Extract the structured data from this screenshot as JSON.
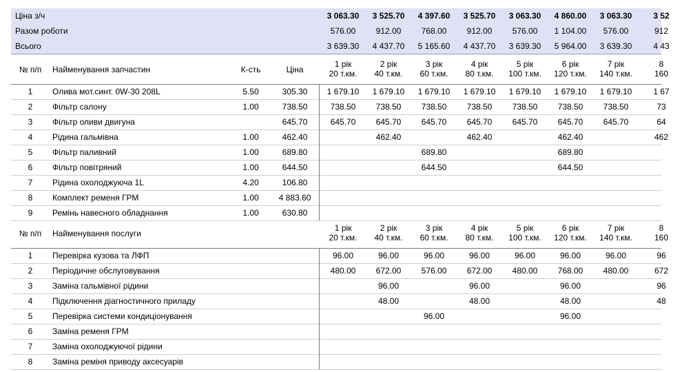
{
  "summary": {
    "rows": [
      {
        "label": "Ціна з/ч",
        "bold": true,
        "values": [
          "3 063.30",
          "3 525.70",
          "4 397.60",
          "3 525.70",
          "3 063.30",
          "4 860.00",
          "3 063.30",
          "3 52"
        ]
      },
      {
        "label": "Разом роботи",
        "bold": false,
        "values": [
          "576.00",
          "912.00",
          "768.00",
          "912.00",
          "576.00",
          "1 104.00",
          "576.00",
          "912"
        ]
      },
      {
        "label": "Всього",
        "bold": false,
        "values": [
          "3 639.30",
          "4 437.70",
          "5 165.60",
          "4 437.70",
          "3 639.30",
          "5 964.00",
          "3 639.30",
          "4 43"
        ]
      }
    ]
  },
  "periods": [
    {
      "year": "1 рік",
      "km": "20 т.км."
    },
    {
      "year": "2 рік",
      "km": "40 т.км."
    },
    {
      "year": "3 рік",
      "km": "60 т.км."
    },
    {
      "year": "4 рік",
      "km": "80 т.км."
    },
    {
      "year": "5 рік",
      "km": "100 т.км."
    },
    {
      "year": "6 рік",
      "km": "120 т.км."
    },
    {
      "year": "7 рік",
      "km": "140 т.км."
    },
    {
      "year": "8",
      "km": "160"
    }
  ],
  "parts": {
    "col_no": "№ п/п",
    "col_name": "Найменування запчастин",
    "col_qty": "К-сть",
    "col_price": "Ціна",
    "rows": [
      {
        "no": "1",
        "name": "Олива мот.синт. 0W-30 208L",
        "qty": "5.50",
        "price": "305.30",
        "v": [
          "1 679.10",
          "1 679.10",
          "1 679.10",
          "1 679.10",
          "1 679.10",
          "1 679.10",
          "1 679.10",
          "1 67"
        ]
      },
      {
        "no": "2",
        "name": "Фільтр салону",
        "qty": "1.00",
        "price": "738.50",
        "v": [
          "738.50",
          "738.50",
          "738.50",
          "738.50",
          "738.50",
          "738.50",
          "738.50",
          "73"
        ]
      },
      {
        "no": "3",
        "name": "Фільтр оливи двигуна",
        "qty": "",
        "price": "645.70",
        "v": [
          "645.70",
          "645.70",
          "645.70",
          "645.70",
          "645.70",
          "645.70",
          "645.70",
          "64"
        ]
      },
      {
        "no": "4",
        "name": "Рідина гальмівна",
        "qty": "1.00",
        "price": "462.40",
        "v": [
          "",
          "462.40",
          "",
          "462.40",
          "",
          "462.40",
          "",
          "462"
        ]
      },
      {
        "no": "5",
        "name": "Фільтр паливний",
        "qty": "1.00",
        "price": "689.80",
        "v": [
          "",
          "",
          "689.80",
          "",
          "",
          "689.80",
          "",
          ""
        ]
      },
      {
        "no": "6",
        "name": "Фільтр повітряний",
        "qty": "1.00",
        "price": "644.50",
        "v": [
          "",
          "",
          "644.50",
          "",
          "",
          "644.50",
          "",
          ""
        ]
      },
      {
        "no": "7",
        "name": "Рідина охолоджуюча 1L",
        "qty": "4.20",
        "price": "106.80",
        "v": [
          "",
          "",
          "",
          "",
          "",
          "",
          "",
          ""
        ]
      },
      {
        "no": "8",
        "name": "Комплект ременя ГРМ",
        "qty": "1.00",
        "price": "4 883.60",
        "v": [
          "",
          "",
          "",
          "",
          "",
          "",
          "",
          ""
        ]
      },
      {
        "no": "9",
        "name": "Ремінь навесного обладнання",
        "qty": "1.00",
        "price": "630.80",
        "v": [
          "",
          "",
          "",
          "",
          "",
          "",
          "",
          ""
        ]
      }
    ]
  },
  "services": {
    "col_no": "№ п/п",
    "col_name": "Найменування послуги",
    "rows": [
      {
        "no": "1",
        "name": "Перевірка кузова та ЛФП",
        "v": [
          "96.00",
          "96.00",
          "96.00",
          "96.00",
          "96.00",
          "96.00",
          "96.00",
          "96"
        ]
      },
      {
        "no": "2",
        "name": "Періодичне обслуговування",
        "v": [
          "480.00",
          "672.00",
          "576.00",
          "672.00",
          "480.00",
          "768.00",
          "480.00",
          "672"
        ]
      },
      {
        "no": "3",
        "name": "Заміна гальмівної рідини",
        "v": [
          "",
          "96.00",
          "",
          "96.00",
          "",
          "96.00",
          "",
          "96"
        ]
      },
      {
        "no": "4",
        "name": "Підключення діагностичного приладу",
        "v": [
          "",
          "48.00",
          "",
          "48.00",
          "",
          "48.00",
          "",
          "48"
        ]
      },
      {
        "no": "5",
        "name": "Перевірка системи кондиціонування",
        "v": [
          "",
          "",
          "96.00",
          "",
          "",
          "96.00",
          "",
          ""
        ]
      },
      {
        "no": "6",
        "name": "Заміна ременя ГРМ",
        "v": [
          "",
          "",
          "",
          "",
          "",
          "",
          "",
          ""
        ]
      },
      {
        "no": "7",
        "name": "Заміна охолоджуючої рідини",
        "v": [
          "",
          "",
          "",
          "",
          "",
          "",
          "",
          ""
        ]
      },
      {
        "no": "8",
        "name": "Заміна реміня приводу аксесуарів",
        "v": [
          "",
          "",
          "",
          "",
          "",
          "",
          "",
          ""
        ]
      }
    ]
  }
}
